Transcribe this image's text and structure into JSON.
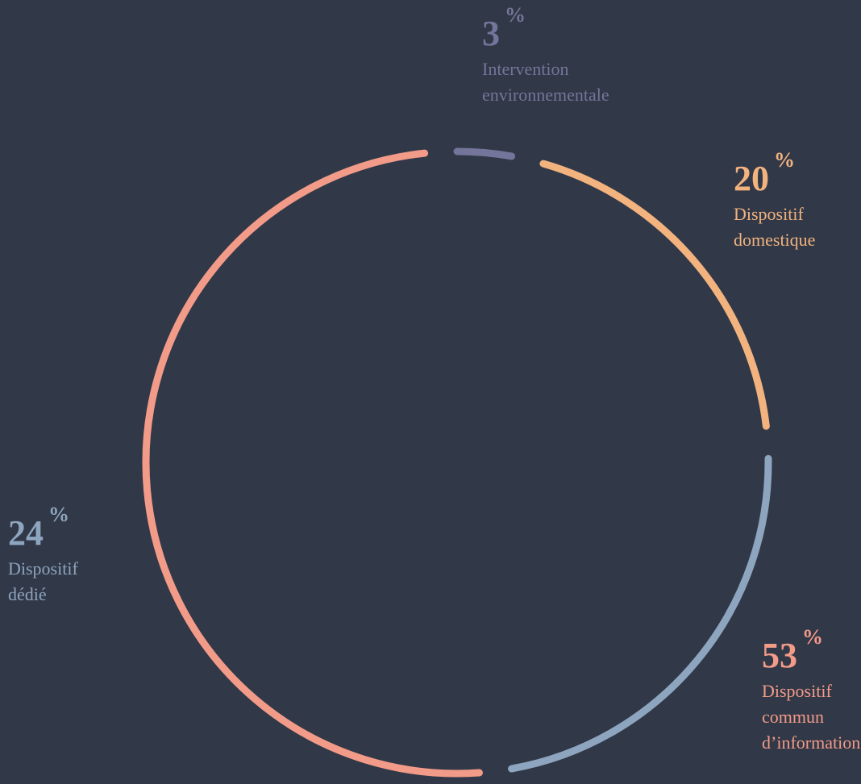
{
  "chart_data": {
    "type": "donut",
    "categories": [
      "Intervention\nenvironnementale",
      "Dispositif\ndomestique",
      "Dispositif\ndédié",
      "Dispositif\ncommun\nd’information"
    ],
    "values": [
      3,
      20,
      24,
      53
    ],
    "unit": "%",
    "colors": [
      "#74759a",
      "#f2b37f",
      "#8ea5bf",
      "#f39b89"
    ]
  }
}
